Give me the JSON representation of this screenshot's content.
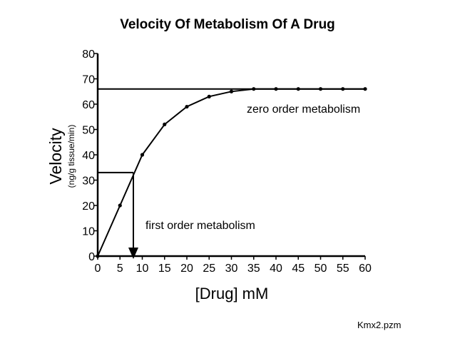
{
  "chart_data": {
    "type": "line",
    "title": "Velocity Of Metabolism Of A Drug",
    "xlabel": "[Drug] mM",
    "ylabel": "Velocity",
    "ylabel_units": "(ng/g tissue/min)",
    "xlim": [
      0,
      60
    ],
    "ylim": [
      0,
      80
    ],
    "x_ticks": [
      "0",
      "5",
      "10",
      "15",
      "20",
      "25",
      "30",
      "35",
      "40",
      "45",
      "50",
      "55",
      "60"
    ],
    "y_ticks": [
      "0",
      "10",
      "20",
      "30",
      "40",
      "50",
      "60",
      "70",
      "80"
    ],
    "grid": false,
    "legend": "none",
    "series": [
      {
        "x": [
          0,
          5,
          10,
          15,
          20,
          25,
          30,
          35,
          40,
          45,
          50,
          55,
          60
        ],
        "y": [
          0,
          20,
          40,
          52,
          59,
          63,
          65,
          66,
          66,
          66,
          66,
          66,
          66
        ]
      }
    ],
    "reference_lines": {
      "vmax": 66,
      "half_vmax": 33,
      "km": 8
    },
    "annotations": {
      "zero_order": "zero order metabolism",
      "first_order": "first order metabolism"
    },
    "source_label": "Kmx2.pzm",
    "colors": {
      "line": "#000000",
      "background": "#ffffff"
    }
  }
}
